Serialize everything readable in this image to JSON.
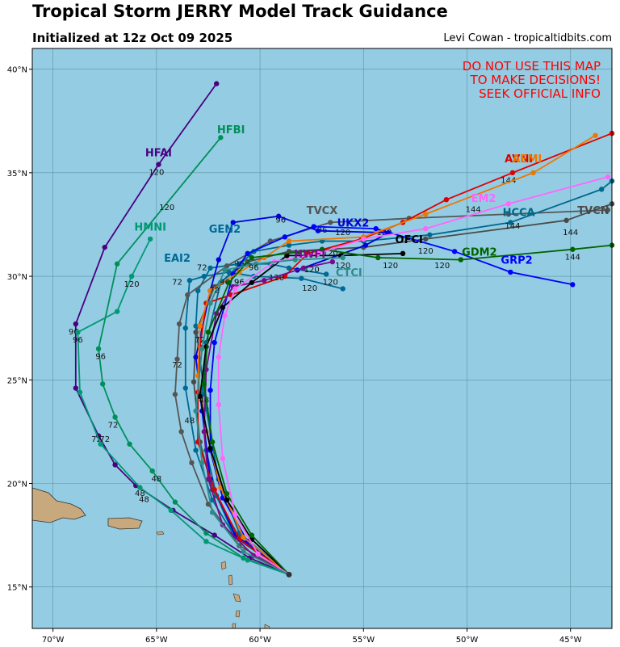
{
  "title": "Tropical Storm JERRY Model Track Guidance",
  "subtitle": "Initialized at 12z Oct 09 2025",
  "credit": "Levi Cowan - tropicaltidbits.com",
  "warning": [
    "DO NOT USE THIS MAP",
    "TO MAKE DECISIONS!",
    "SEEK OFFICIAL INFO"
  ],
  "colors": {
    "ocean": "#94cde3",
    "land": "#c8a97e",
    "grid": "#5f8fa0"
  },
  "map": {
    "lon_range": [
      -71,
      -43
    ],
    "lat_range": [
      13,
      41
    ],
    "lon_ticks": [
      -70,
      -65,
      -60,
      -55,
      -50,
      -45
    ],
    "lat_ticks": [
      15,
      20,
      25,
      30,
      35,
      40
    ],
    "lon_labels": [
      "70°W",
      "65°W",
      "60°W",
      "55°W",
      "50°W",
      "45°W"
    ],
    "lat_labels": [
      "15°N",
      "20°N",
      "25°N",
      "30°N",
      "35°N",
      "40°N"
    ]
  },
  "models": [
    {
      "name": "HFAI",
      "color": "#4b0082",
      "label_at": [
        -64.9,
        35.8
      ],
      "track": [
        [
          -58.6,
          15.6
        ],
        [
          -60.5,
          16.4
        ],
        [
          -62.2,
          17.5
        ],
        [
          -64.2,
          18.7
        ],
        [
          -66.0,
          19.9
        ],
        [
          -67.0,
          20.9
        ],
        [
          -67.8,
          22.3
        ],
        [
          -68.9,
          24.6
        ],
        [
          -68.9,
          27.7
        ],
        [
          -67.5,
          31.4
        ],
        [
          -64.9,
          35.4
        ],
        [
          -62.1,
          39.3
        ]
      ],
      "hours": [
        [
          "48",
          -65.8,
          19.4
        ],
        [
          "72",
          -67.9,
          22.0
        ],
        [
          "96",
          -69.0,
          27.2
        ],
        [
          "120",
          -65.0,
          34.9
        ]
      ]
    },
    {
      "name": "HFBI",
      "color": "#008f5a",
      "label_at": [
        -61.4,
        36.9
      ],
      "track": [
        [
          -58.6,
          15.6
        ],
        [
          -60.8,
          16.4
        ],
        [
          -62.6,
          17.6
        ],
        [
          -64.1,
          19.1
        ],
        [
          -65.2,
          20.6
        ],
        [
          -66.3,
          21.9
        ],
        [
          -67.0,
          23.2
        ],
        [
          -67.6,
          24.8
        ],
        [
          -67.8,
          26.5
        ],
        [
          -66.9,
          30.6
        ],
        [
          -61.9,
          36.7
        ]
      ],
      "hours": [
        [
          "48",
          -65.0,
          20.1
        ],
        [
          "72",
          -67.1,
          22.7
        ],
        [
          "96",
          -67.7,
          26.0
        ],
        [
          "120",
          -64.5,
          33.2
        ]
      ]
    },
    {
      "name": "HMNI",
      "color": "#009973",
      "label_at": [
        -65.3,
        32.2
      ],
      "track": [
        [
          -58.6,
          15.6
        ],
        [
          -60.6,
          16.3
        ],
        [
          -62.6,
          17.2
        ],
        [
          -64.3,
          18.7
        ],
        [
          -65.8,
          19.8
        ],
        [
          -67.7,
          21.9
        ],
        [
          -68.7,
          24.4
        ],
        [
          -68.8,
          27.3
        ],
        [
          -66.9,
          28.3
        ],
        [
          -66.2,
          30.0
        ],
        [
          -65.3,
          31.8
        ]
      ],
      "hours": [
        [
          "48",
          -65.6,
          19.1
        ],
        [
          "72",
          -67.5,
          22.0
        ],
        [
          "96",
          -68.8,
          26.8
        ],
        [
          "120",
          -66.2,
          29.5
        ]
      ]
    },
    {
      "name": "EAI2",
      "color": "#006994",
      "label_at": [
        -64.0,
        30.7
      ],
      "track": [
        [
          -58.6,
          15.6
        ],
        [
          -61.2,
          17.4
        ],
        [
          -62.3,
          19.2
        ],
        [
          -63.1,
          21.6
        ],
        [
          -63.6,
          24.6
        ],
        [
          -63.6,
          27.5
        ],
        [
          -63.4,
          29.8
        ],
        [
          -62.7,
          30.0
        ],
        [
          -61.5,
          30.2
        ],
        [
          -60.3,
          30.0
        ],
        [
          -58.0,
          29.9
        ],
        [
          -56.0,
          29.4
        ]
      ],
      "hours": [
        [
          "48",
          -63.4,
          22.9
        ],
        [
          "72",
          -64.0,
          29.6
        ],
        [
          "96",
          -61.0,
          29.6
        ],
        [
          "120",
          -57.6,
          29.3
        ]
      ]
    },
    {
      "name": "GEN2",
      "color": "#006994",
      "label_at": [
        -61.7,
        32.1
      ],
      "track": [
        [
          -58.6,
          15.6
        ],
        [
          -61.0,
          17.6
        ],
        [
          -62.0,
          20.2
        ],
        [
          -62.6,
          23.6
        ],
        [
          -63.1,
          27.6
        ],
        [
          -63.0,
          29.3
        ],
        [
          -62.4,
          30.4
        ],
        [
          -61.0,
          30.6
        ],
        [
          -59.5,
          30.6
        ],
        [
          -58.6,
          30.4
        ],
        [
          -56.8,
          30.1
        ]
      ],
      "hours": [
        [
          "72",
          -62.8,
          30.3
        ],
        [
          "96",
          -61.0,
          30.5
        ],
        [
          "120",
          -56.6,
          29.6
        ]
      ]
    },
    {
      "name": "TVCX",
      "color": "#555555",
      "label_at": [
        -57.0,
        33.0
      ],
      "track": [
        [
          -58.6,
          15.6
        ],
        [
          -61.0,
          17.0
        ],
        [
          -62.5,
          19.0
        ],
        [
          -63.3,
          21.0
        ],
        [
          -63.8,
          22.5
        ],
        [
          -64.1,
          24.3
        ],
        [
          -64.0,
          26.0
        ],
        [
          -63.9,
          27.7
        ],
        [
          -63.5,
          29.1
        ],
        [
          -61.6,
          30.5
        ],
        [
          -59.5,
          31.7
        ],
        [
          -56.6,
          32.6
        ],
        [
          -52.8,
          32.8
        ],
        [
          -48.0,
          33.0
        ],
        [
          -43.2,
          33.2
        ]
      ],
      "hours": [
        [
          "72",
          -64.0,
          25.6
        ],
        [
          "96",
          -57.0,
          32.1
        ],
        [
          "120",
          -54.0,
          32.0
        ]
      ]
    },
    {
      "name": "TVCN",
      "color": "#4a4a4a",
      "label_at": [
        -43.9,
        33.0
      ],
      "track": [
        [
          -58.6,
          15.6
        ],
        [
          -61.0,
          17.4
        ],
        [
          -62.3,
          19.7
        ],
        [
          -62.9,
          22.0
        ],
        [
          -63.2,
          24.9
        ],
        [
          -63.1,
          27.3
        ],
        [
          -62.2,
          29.5
        ],
        [
          -60.6,
          30.7
        ],
        [
          -58.6,
          31.2
        ],
        [
          -55.0,
          31.4
        ],
        [
          -52.0,
          31.8
        ],
        [
          -45.2,
          32.7
        ],
        [
          -43.0,
          33.5
        ]
      ],
      "hours": [
        [
          "144",
          -45.0,
          32.0
        ]
      ]
    },
    {
      "name": "HCCA",
      "color": "#00688b",
      "label_at": [
        -47.5,
        32.9
      ],
      "track": [
        [
          -58.6,
          15.6
        ],
        [
          -61.3,
          17.6
        ],
        [
          -62.1,
          19.4
        ],
        [
          -62.6,
          21.6
        ],
        [
          -62.8,
          24.3
        ],
        [
          -62.6,
          26.8
        ],
        [
          -61.9,
          29.7
        ],
        [
          -60.3,
          31.2
        ],
        [
          -58.6,
          31.5
        ],
        [
          -57.0,
          31.7
        ],
        [
          -55.0,
          31.7
        ],
        [
          -51.8,
          32.0
        ],
        [
          -47.9,
          32.6
        ],
        [
          -43.5,
          34.2
        ],
        [
          -43.0,
          34.6
        ]
      ],
      "hours": [
        [
          "120",
          -52.0,
          31.1
        ],
        [
          "144",
          -47.8,
          32.3
        ]
      ]
    },
    {
      "name": "GRP2",
      "color": "#0000ff",
      "label_at": [
        -47.6,
        30.6
      ],
      "track": [
        [
          -58.6,
          15.6
        ],
        [
          -60.6,
          17.2
        ],
        [
          -61.8,
          19.3
        ],
        [
          -62.4,
          21.6
        ],
        [
          -62.4,
          24.5
        ],
        [
          -62.2,
          26.8
        ],
        [
          -61.3,
          30.1
        ],
        [
          -60.6,
          31.1
        ],
        [
          -58.8,
          31.9
        ],
        [
          -57.4,
          32.4
        ],
        [
          -54.4,
          32.3
        ],
        [
          -50.6,
          31.2
        ],
        [
          -47.9,
          30.2
        ],
        [
          -44.9,
          29.6
        ]
      ],
      "hours": [
        [
          "120",
          -51.2,
          30.4
        ]
      ]
    },
    {
      "name": "UKX2",
      "color": "#0000dd",
      "label_at": [
        -55.5,
        32.4
      ],
      "track": [
        [
          -58.6,
          15.6
        ],
        [
          -61.2,
          17.5
        ],
        [
          -62.4,
          20.2
        ],
        [
          -62.8,
          23.5
        ],
        [
          -63.1,
          26.1
        ],
        [
          -62.4,
          29.3
        ],
        [
          -62.0,
          30.8
        ],
        [
          -61.3,
          32.6
        ],
        [
          -59.1,
          32.9
        ],
        [
          -57.2,
          32.2
        ],
        [
          -53.8,
          32.1
        ],
        [
          -54.9,
          31.5
        ],
        [
          -58.2,
          30.3
        ]
      ],
      "hours": [
        [
          "96",
          -59.0,
          32.6
        ],
        [
          "120",
          -56.6,
          31.0
        ]
      ]
    },
    {
      "name": "AVNI",
      "color": "#dd0000",
      "label_at": [
        -47.5,
        35.5
      ],
      "track": [
        [
          -58.6,
          15.6
        ],
        [
          -61.0,
          17.3
        ],
        [
          -62.2,
          19.7
        ],
        [
          -63.0,
          22.0
        ],
        [
          -63.0,
          24.4
        ],
        [
          -62.9,
          26.6
        ],
        [
          -62.6,
          28.7
        ],
        [
          -61.4,
          29.1
        ],
        [
          -58.8,
          30.0
        ],
        [
          -57.7,
          31.1
        ],
        [
          -55.1,
          31.8
        ],
        [
          -53.1,
          32.6
        ],
        [
          -51.0,
          33.7
        ],
        [
          -47.8,
          35.0
        ],
        [
          -43.0,
          36.9
        ]
      ],
      "hours": [
        [
          "120",
          -59.2,
          29.8
        ],
        [
          "144",
          -48.0,
          34.5
        ]
      ]
    },
    {
      "name": "AEMI",
      "color": "#ee7700",
      "label_at": [
        -47.1,
        35.5
      ],
      "track": [
        [
          -58.6,
          15.6
        ],
        [
          -60.8,
          17.4
        ],
        [
          -61.9,
          19.8
        ],
        [
          -62.6,
          22.5
        ],
        [
          -63.0,
          25.2
        ],
        [
          -62.9,
          27.6
        ],
        [
          -62.4,
          29.3
        ],
        [
          -61.0,
          30.2
        ],
        [
          -59.8,
          30.9
        ],
        [
          -58.6,
          31.7
        ],
        [
          -55.0,
          31.9
        ],
        [
          -52.0,
          33.0
        ],
        [
          -46.8,
          35.0
        ],
        [
          -43.8,
          36.8
        ]
      ],
      "hours": [
        [
          "120",
          -56.0,
          32.0
        ]
      ]
    },
    {
      "name": "HWFI",
      "color": "#7a0a8a",
      "label_at": [
        -57.6,
        30.9
      ],
      "track": [
        [
          -58.6,
          15.6
        ],
        [
          -60.3,
          16.5
        ],
        [
          -61.8,
          18.0
        ],
        [
          -62.5,
          20.2
        ],
        [
          -62.7,
          22.5
        ],
        [
          -62.6,
          25.5
        ],
        [
          -62.1,
          28.2
        ],
        [
          -61.3,
          29.5
        ],
        [
          -59.8,
          29.8
        ],
        [
          -57.9,
          30.4
        ],
        [
          -56.5,
          30.7
        ]
      ],
      "hours": [
        [
          "96",
          -61.0,
          29.6
        ],
        [
          "120",
          -57.5,
          30.2
        ]
      ]
    },
    {
      "name": "OFCI",
      "color": "#000000",
      "label_at": [
        -52.8,
        31.6
      ],
      "track": [
        [
          -58.6,
          15.6
        ],
        [
          -60.4,
          17.3
        ],
        [
          -61.6,
          19.2
        ],
        [
          -62.4,
          21.7
        ],
        [
          -62.9,
          24.2
        ],
        [
          -62.6,
          26.6
        ],
        [
          -61.8,
          28.5
        ],
        [
          -60.4,
          29.7
        ],
        [
          -58.7,
          31.0
        ],
        [
          -56.1,
          31.0
        ],
        [
          -53.1,
          31.1
        ]
      ],
      "hours": [
        [
          "48",
          -62.7,
          23.9
        ],
        [
          "72",
          -62.9,
          26.8
        ],
        [
          "96",
          -61.7,
          29.6
        ],
        [
          "120",
          -56.0,
          30.4
        ]
      ]
    },
    {
      "name": "GDM2",
      "color": "#006400",
      "label_at": [
        -49.4,
        31.0
      ],
      "track": [
        [
          -58.6,
          15.6
        ],
        [
          -60.4,
          17.5
        ],
        [
          -61.6,
          19.5
        ],
        [
          -62.3,
          22.0
        ],
        [
          -62.7,
          24.8
        ],
        [
          -62.5,
          27.3
        ],
        [
          -61.5,
          29.7
        ],
        [
          -60.4,
          30.9
        ],
        [
          -57.0,
          31.3
        ],
        [
          -54.3,
          30.9
        ],
        [
          -50.3,
          30.8
        ],
        [
          -44.9,
          31.3
        ],
        [
          -43.0,
          31.5
        ]
      ],
      "hours": [
        [
          "120",
          -53.7,
          30.4
        ],
        [
          "144",
          -44.9,
          30.8
        ]
      ]
    },
    {
      "name": "EM2",
      "color": "#ff66ff",
      "label_at": [
        -49.2,
        33.6
      ],
      "track": [
        [
          -58.6,
          15.6
        ],
        [
          -60.1,
          16.6
        ],
        [
          -61.2,
          18.5
        ],
        [
          -61.8,
          21.2
        ],
        [
          -62.0,
          23.8
        ],
        [
          -62.0,
          26.1
        ],
        [
          -61.7,
          28.1
        ],
        [
          -61.2,
          29.4
        ],
        [
          -59.3,
          30.7
        ],
        [
          -57.2,
          31.1
        ],
        [
          -55.0,
          31.8
        ],
        [
          -52.0,
          32.3
        ],
        [
          -48.0,
          33.5
        ],
        [
          -43.2,
          34.8
        ]
      ],
      "hours": [
        [
          "144",
          -49.7,
          33.1
        ]
      ]
    },
    {
      "name": "CTCI",
      "color": "#2e8b8b",
      "label_at": [
        -55.7,
        30.0
      ],
      "track": [
        [
          -58.6,
          15.6
        ],
        [
          -60.8,
          16.7
        ],
        [
          -62.3,
          18.6
        ],
        [
          -62.8,
          21.0
        ],
        [
          -63.1,
          23.5
        ],
        [
          -62.8,
          26.5
        ],
        [
          -62.4,
          28.7
        ],
        [
          -61.7,
          30.3
        ],
        [
          -60.2,
          30.6
        ],
        [
          -58.3,
          30.8
        ],
        [
          -56.0,
          30.9
        ]
      ],
      "hours": [
        [
          "72",
          -62.2,
          29.2
        ],
        [
          "96",
          -60.3,
          30.3
        ]
      ]
    }
  ]
}
